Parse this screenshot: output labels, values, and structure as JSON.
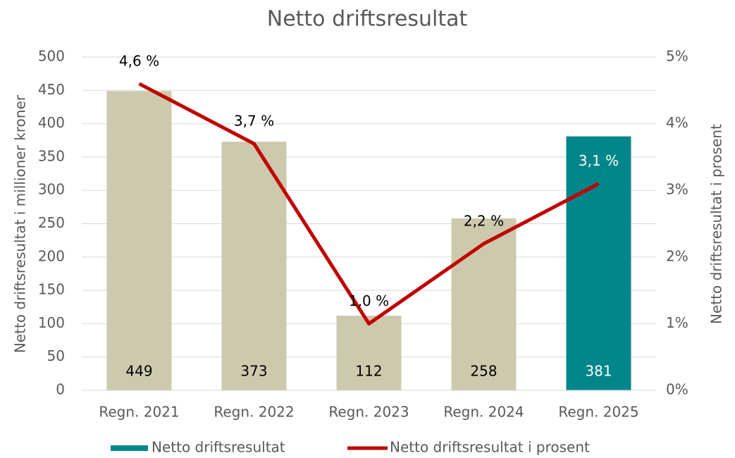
{
  "chart_data": {
    "type": "bar-line",
    "title": "Netto driftsresultat",
    "ylabel": "Netto driftsresultat i millioner kroner",
    "y2label": "Netto driftsresultat i prosent",
    "categories": [
      "Regn. 2021",
      "Regn. 2022",
      "Regn. 2023",
      "Regn. 2024",
      "Regn. 2025"
    ],
    "series": [
      {
        "name": "Netto driftsresultat",
        "type": "bar",
        "color": "#00868a",
        "colors": [
          "#cdc9ad",
          "#cdc9ad",
          "#cdc9ad",
          "#cdc9ad",
          "#00868a"
        ],
        "values": [
          449,
          373,
          112,
          258,
          381
        ]
      },
      {
        "name": "Netto driftsresultat i prosent",
        "type": "line",
        "axis": "y2",
        "color": "#c00000",
        "values": [
          4.6,
          3.7,
          1.0,
          2.2,
          3.1
        ],
        "value_labels": [
          "4,6 %",
          "3,7 %",
          "1,0 %",
          "2,2 %",
          "3,1 %"
        ]
      }
    ],
    "ylim": [
      0,
      500
    ],
    "yticks": [
      0,
      50,
      100,
      150,
      200,
      250,
      300,
      350,
      400,
      450,
      500
    ],
    "y2lim": [
      0,
      5
    ],
    "y2ticks": [
      {
        "value": 0,
        "label": "0%"
      },
      {
        "value": 1,
        "label": "1%"
      },
      {
        "value": 2,
        "label": "2%"
      },
      {
        "value": 3,
        "label": "3%"
      },
      {
        "value": 4,
        "label": "4%"
      },
      {
        "value": 5,
        "label": "5%"
      }
    ],
    "grid": true,
    "legend": "bottom"
  }
}
